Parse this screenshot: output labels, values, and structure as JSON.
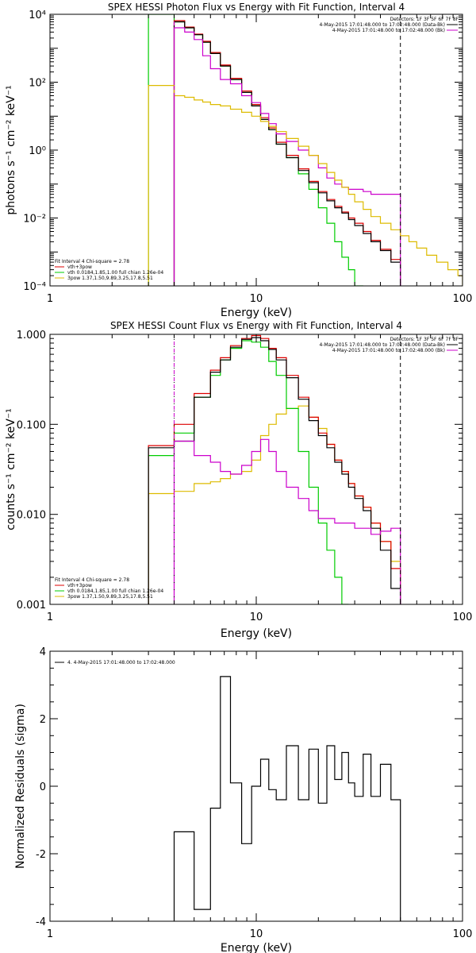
{
  "chart_data": [
    {
      "type": "line",
      "title": "SPEX HESSI Photon Flux vs Energy with Fit Function, Interval 4",
      "xlabel": "Energy (keV)",
      "ylabel": "photons s⁻¹ cm⁻² keV⁻¹",
      "xscale": "log",
      "yscale": "log",
      "xlim": [
        1,
        100
      ],
      "ylim": [
        0.0001,
        10000
      ],
      "x_ticks": [
        {
          "v": 1,
          "label": "1"
        },
        {
          "v": 10,
          "label": "10"
        },
        {
          "v": 100,
          "label": "100"
        }
      ],
      "y_ticks": [
        {
          "v": 0.0001,
          "label": "10⁻⁴"
        },
        {
          "v": 0.01,
          "label": "10⁻²"
        },
        {
          "v": 1,
          "label": "10⁰"
        },
        {
          "v": 100,
          "label": "10²"
        },
        {
          "v": 10000,
          "label": "10⁴"
        }
      ],
      "vlines": [
        {
          "x": 4,
          "color": "#cc00cc",
          "style": "dashed"
        },
        {
          "x": 50,
          "color": "#000000",
          "style": "dashed"
        }
      ],
      "legend_right": {
        "placement": "top-right",
        "lines": [
          {
            "text": "Detectors: 1F 3F 5F 6F 7F 8F",
            "color": null
          },
          {
            "text": "4-May-2015 17:01:48.000 to 17:02:48.000 (Data-Bk)",
            "color": "#000000"
          },
          {
            "text": "4-May-2015 17:01:48.000 to 17:02:48.000 (Bk)",
            "color": "#cc00cc"
          }
        ]
      },
      "legend_left": {
        "placement": "bottom-left",
        "lines": [
          {
            "text": "Fit Interval 4   Chi-square = 2.78",
            "color": null
          },
          {
            "text": "vth+3pow",
            "color": "#dd0000"
          },
          {
            "text": "vth 0.0184,1.85,1.00  full chian 1.26e-04",
            "color": "#00cc00"
          },
          {
            "text": "3pow 1.37,1.50,9.89,3.25,17.8,5.51",
            "color": "#ddbb00"
          }
        ]
      },
      "series": [
        {
          "color": "#00cc00",
          "edges": [
            3,
            4,
            4.5,
            5,
            5.5,
            6,
            6.7,
            7.5,
            8.5,
            9.5,
            10.5,
            11.5,
            12.5,
            14,
            16,
            18,
            20,
            22,
            24,
            26,
            28,
            30,
            33
          ],
          "values": [
            10000,
            6000,
            4000,
            2500,
            1500,
            700,
            300,
            120,
            50,
            20,
            8,
            4,
            1.5,
            0.6,
            0.2,
            0.07,
            0.02,
            0.007,
            0.002,
            0.0007,
            0.0003,
            0.0001
          ]
        },
        {
          "color": "#dd0000",
          "edges": [
            4,
            4.5,
            5,
            5.5,
            6,
            6.7,
            7.5,
            8.5,
            9.5,
            10.5,
            11.5,
            12.5,
            14,
            16,
            18,
            20,
            22,
            24,
            26,
            28,
            30,
            33,
            36,
            40,
            45,
            50
          ],
          "values": [
            6500,
            4200,
            2600,
            1600,
            750,
            320,
            130,
            55,
            22,
            9,
            4.5,
            1.7,
            0.7,
            0.28,
            0.12,
            0.06,
            0.035,
            0.022,
            0.015,
            0.01,
            0.007,
            0.004,
            0.0022,
            0.0012,
            0.0006
          ]
        },
        {
          "color": "#000000",
          "edges": [
            4,
            4.5,
            5,
            5.5,
            6,
            6.7,
            7.5,
            8.5,
            9.5,
            10.5,
            11.5,
            12.5,
            14,
            16,
            18,
            20,
            22,
            24,
            26,
            28,
            30,
            33,
            36,
            40,
            45,
            50
          ],
          "values": [
            6000,
            4000,
            2500,
            1500,
            700,
            300,
            120,
            50,
            20,
            8,
            4,
            1.5,
            0.6,
            0.25,
            0.11,
            0.055,
            0.032,
            0.02,
            0.014,
            0.009,
            0.006,
            0.0035,
            0.002,
            0.0011,
            0.0005
          ]
        },
        {
          "color": "#cc00cc",
          "edges": [
            4,
            4.5,
            5,
            5.5,
            6,
            6.7,
            7.5,
            8.5,
            9.5,
            10.5,
            11.5,
            12.5,
            14,
            16,
            18,
            20,
            22,
            24,
            26,
            28,
            30,
            33,
            36,
            40,
            45,
            50
          ],
          "values": [
            4000,
            3000,
            1800,
            600,
            250,
            120,
            90,
            40,
            25,
            12,
            6,
            3,
            1.8,
            1,
            0.7,
            0.3,
            0.15,
            0.1,
            0.08,
            0.07,
            0.07,
            0.06,
            0.05,
            0.05,
            0.05
          ]
        },
        {
          "color": "#ddbb00",
          "edges": [
            3,
            4,
            4.5,
            5,
            5.5,
            6,
            6.7,
            7.5,
            8.5,
            9.5,
            10.5,
            11.5,
            12.5,
            14,
            16,
            18,
            20,
            22,
            24,
            26,
            28,
            30,
            33,
            36,
            40,
            45,
            50,
            55,
            60,
            67,
            75,
            85,
            95,
            100
          ],
          "values": [
            80,
            40,
            36,
            30,
            26,
            22,
            20,
            16,
            13,
            10,
            7,
            5,
            3.5,
            2.2,
            1.3,
            0.7,
            0.4,
            0.22,
            0.13,
            0.08,
            0.05,
            0.03,
            0.018,
            0.011,
            0.007,
            0.0045,
            0.003,
            0.002,
            0.0013,
            0.0008,
            0.0005,
            0.0003,
            0.0002
          ]
        }
      ]
    },
    {
      "type": "line",
      "title": "SPEX HESSI Count Flux vs Energy with Fit Function, Interval 4",
      "xlabel": "Energy (keV)",
      "ylabel": "counts s⁻¹ cm⁻² keV⁻¹",
      "xscale": "log",
      "yscale": "log",
      "xlim": [
        1,
        100
      ],
      "ylim": [
        0.001,
        1
      ],
      "x_ticks": [
        {
          "v": 1,
          "label": "1"
        },
        {
          "v": 10,
          "label": "10"
        },
        {
          "v": 100,
          "label": "100"
        }
      ],
      "y_ticks": [
        {
          "v": 0.001,
          "label": "0.001"
        },
        {
          "v": 0.01,
          "label": "0.010"
        },
        {
          "v": 0.1,
          "label": "0.100"
        },
        {
          "v": 1,
          "label": "1.000"
        }
      ],
      "vlines": [
        {
          "x": 4,
          "color": "#000000",
          "style": "dotted"
        },
        {
          "x": 4,
          "color": "#cc00cc",
          "style": "dashed"
        },
        {
          "x": 50,
          "color": "#000000",
          "style": "dashed"
        }
      ],
      "legend_right": {
        "placement": "top-right",
        "lines": [
          {
            "text": "Detectors: 1F 3F 5F 6F 7F 8F",
            "color": null
          },
          {
            "text": "4-May-2015 17:01:48.000 to 17:02:48.000 (Data-Bk)",
            "color": "#000000"
          },
          {
            "text": "4-May-2015 17:01:48.000 to 17:02:48.000 (Bk)",
            "color": "#cc00cc"
          }
        ]
      },
      "legend_left": {
        "placement": "bottom-left",
        "lines": [
          {
            "text": "Fit Interval 4   Chi-square = 2.78",
            "color": null
          },
          {
            "text": "vth+3pow",
            "color": "#dd0000"
          },
          {
            "text": "vth 0.0184,1.85,1.00  full chian 1.26e-04",
            "color": "#00cc00"
          },
          {
            "text": "3pow 1.37,1.50,9.89,3.25,17.8,5.51",
            "color": "#ddbb00"
          }
        ]
      },
      "series": [
        {
          "color": "#ddbb00",
          "edges": [
            3,
            4,
            5,
            6,
            6.7,
            7.5,
            8.5,
            9.5,
            10.5,
            11.5,
            12.5,
            14,
            16,
            18,
            20,
            22,
            24,
            26,
            28,
            30,
            33,
            36,
            40,
            45,
            50
          ],
          "values": [
            0.017,
            0.018,
            0.022,
            0.023,
            0.025,
            0.028,
            0.03,
            0.04,
            0.075,
            0.1,
            0.13,
            0.15,
            0.16,
            0.12,
            0.09,
            0.06,
            0.04,
            0.03,
            0.022,
            0.016,
            0.012,
            0.008,
            0.005,
            0.003
          ]
        },
        {
          "color": "#00cc00",
          "edges": [
            3,
            4,
            5,
            6,
            6.7,
            7.5,
            8.5,
            9.5,
            10.5,
            11.5,
            12.5,
            14,
            16,
            18,
            20,
            22,
            24,
            26,
            28
          ],
          "values": [
            0.045,
            0.08,
            0.2,
            0.35,
            0.52,
            0.7,
            0.85,
            0.82,
            0.72,
            0.5,
            0.35,
            0.15,
            0.05,
            0.02,
            0.008,
            0.004,
            0.002,
            0.001
          ]
        },
        {
          "color": "#dd0000",
          "edges": [
            3,
            4,
            5,
            6,
            6.7,
            7.5,
            8.5,
            9.5,
            10.5,
            11.5,
            12.5,
            14,
            16,
            18,
            20,
            22,
            24,
            26,
            28,
            30,
            33,
            36,
            40,
            45,
            50
          ],
          "values": [
            0.058,
            0.1,
            0.22,
            0.4,
            0.55,
            0.75,
            0.9,
            0.97,
            0.9,
            0.7,
            0.55,
            0.35,
            0.2,
            0.12,
            0.08,
            0.06,
            0.04,
            0.03,
            0.022,
            0.016,
            0.012,
            0.008,
            0.005,
            0.0025
          ]
        },
        {
          "color": "#000000",
          "edges": [
            3,
            4,
            5,
            6,
            6.7,
            7.5,
            8.5,
            9.5,
            10.5,
            11.5,
            12.5,
            14,
            16,
            18,
            20,
            22,
            24,
            26,
            28,
            30,
            33,
            36,
            40,
            45,
            50
          ],
          "values": [
            0.055,
            0.065,
            0.2,
            0.38,
            0.52,
            0.72,
            0.88,
            0.92,
            0.85,
            0.68,
            0.52,
            0.33,
            0.19,
            0.11,
            0.075,
            0.055,
            0.038,
            0.028,
            0.02,
            0.015,
            0.011,
            0.007,
            0.004,
            0.0015
          ]
        },
        {
          "color": "#cc00cc",
          "edges": [
            4,
            5,
            6,
            6.7,
            7.5,
            8.5,
            9.5,
            10.5,
            11.5,
            12.5,
            14,
            16,
            18,
            20,
            22,
            24,
            26,
            28,
            30,
            33,
            36,
            40,
            45,
            50
          ],
          "values": [
            0.065,
            0.045,
            0.038,
            0.03,
            0.028,
            0.035,
            0.05,
            0.068,
            0.05,
            0.03,
            0.02,
            0.015,
            0.011,
            0.009,
            0.009,
            0.008,
            0.008,
            0.008,
            0.007,
            0.007,
            0.006,
            0.0065,
            0.007
          ]
        }
      ]
    },
    {
      "type": "line",
      "title": "",
      "xlabel": "Energy (keV)",
      "ylabel": "Normalized Residuals (sigma)",
      "xscale": "log",
      "yscale": "linear",
      "xlim": [
        1,
        100
      ],
      "ylim": [
        -4,
        4
      ],
      "x_ticks": [
        {
          "v": 1,
          "label": "1"
        },
        {
          "v": 10,
          "label": "10"
        },
        {
          "v": 100,
          "label": "100"
        }
      ],
      "y_ticks": [
        {
          "v": -4,
          "label": "-4"
        },
        {
          "v": -2,
          "label": "-2"
        },
        {
          "v": 0,
          "label": "0"
        },
        {
          "v": 2,
          "label": "2"
        },
        {
          "v": 4,
          "label": "4"
        }
      ],
      "legend_left": {
        "placement": "top-left",
        "lines": [
          {
            "text": "4. 4-May-2015 17:01:48.000 to 17:02:48.000",
            "color": "#000000"
          }
        ]
      },
      "series": [
        {
          "color": "#000000",
          "edges": [
            4,
            5,
            6,
            6.7,
            7.5,
            8.5,
            9.5,
            10.5,
            11.5,
            12.5,
            14,
            16,
            18,
            20,
            22,
            24,
            26,
            28,
            30,
            33,
            36,
            40,
            45,
            50
          ],
          "values": [
            -1.35,
            -3.65,
            -0.65,
            3.25,
            0.1,
            -1.7,
            0,
            0.8,
            -0.1,
            -0.4,
            1.2,
            -0.4,
            1.1,
            -0.5,
            1.2,
            0.2,
            1,
            0.1,
            -0.3,
            0.95,
            -0.3,
            0.65,
            -0.4
          ]
        }
      ]
    }
  ]
}
